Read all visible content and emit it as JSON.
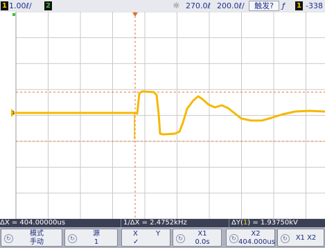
{
  "status_bar": {
    "ch1_number": "1",
    "ch1_scale": "1.00ℓ/",
    "ch2_number": "2",
    "time_delay": "270.0ℓ",
    "time_scale": "200.0ℓ/",
    "trigger_status": "触发?",
    "trigger_slope": "ƒ",
    "trigger_source": "1",
    "trigger_level": "-338"
  },
  "measurements": {
    "delta_x": "ΔX = 404.00000us",
    "inv_delta_x": "1/ΔX = 2.4752kHz",
    "delta_y_prefix": "ΔY(",
    "delta_y_channel": "1",
    "delta_y_suffix": ") = 1.93750kV"
  },
  "softkeys": {
    "mode": {
      "label": "模式",
      "value": "手动"
    },
    "source": {
      "label": "源",
      "value": "1"
    },
    "xy": {
      "x": "X",
      "y": "Y",
      "check": "✓"
    },
    "x1": {
      "label": "X1",
      "value": "0.0s"
    },
    "x2": {
      "label": "X2",
      "value": "404.000us"
    },
    "x1x2": {
      "label": "X1 X2"
    }
  },
  "colors": {
    "trace_ch1": "#f5b800",
    "cursor": "#e07030",
    "grid": "#c8c8c8",
    "marker_ch2": "#3cc03c"
  },
  "icons": {
    "softkey_knob": "rotate-knob-icon",
    "time": "sun-time-icon"
  }
}
